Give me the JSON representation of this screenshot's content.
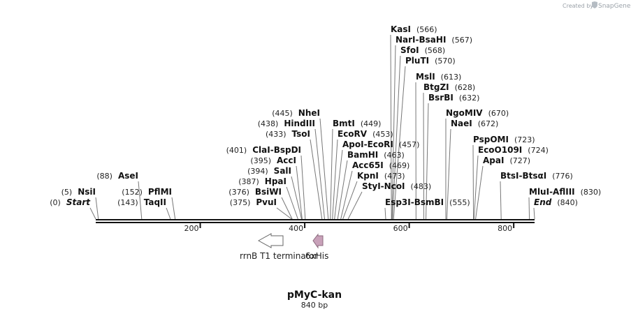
{
  "credit": {
    "prefix": "Created by",
    "brand": "SnapGene"
  },
  "plasmid": {
    "name": "pMyC-kan",
    "length_label": "840 bp",
    "length": 840
  },
  "axis": {
    "ticks": [
      200,
      400,
      600,
      800
    ]
  },
  "sites": [
    {
      "names": [
        "KasI"
      ],
      "pos": "(566)",
      "bp": 566,
      "side": "right"
    },
    {
      "names": [
        "NarI",
        "BsaHI"
      ],
      "pos": "(567)",
      "bp": 567,
      "side": "right"
    },
    {
      "names": [
        "SfoI"
      ],
      "pos": "(568)",
      "bp": 568,
      "side": "right"
    },
    {
      "names": [
        "PluTI"
      ],
      "pos": "(570)",
      "bp": 570,
      "side": "right"
    },
    {
      "names": [
        "MslI"
      ],
      "pos": "(613)",
      "bp": 613,
      "side": "right"
    },
    {
      "names": [
        "BtgZI"
      ],
      "pos": "(628)",
      "bp": 628,
      "side": "right"
    },
    {
      "names": [
        "BsrBI"
      ],
      "pos": "(632)",
      "bp": 632,
      "side": "right"
    },
    {
      "names": [
        "NgoMIV"
      ],
      "pos": "(670)",
      "bp": 670,
      "side": "right"
    },
    {
      "names": [
        "NaeI"
      ],
      "pos": "(672)",
      "bp": 672,
      "side": "right"
    },
    {
      "names": [
        "PspOMI"
      ],
      "pos": "(723)",
      "bp": 723,
      "side": "right"
    },
    {
      "names": [
        "EcoO109I"
      ],
      "pos": "(724)",
      "bp": 724,
      "side": "right"
    },
    {
      "names": [
        "ApaI"
      ],
      "pos": "(727)",
      "bp": 727,
      "side": "right"
    },
    {
      "names": [
        "BtsI",
        "BtsαI"
      ],
      "pos": "(776)",
      "bp": 776,
      "side": "right"
    },
    {
      "names": [
        "MluI",
        "AflIII"
      ],
      "pos": "(830)",
      "bp": 830,
      "side": "right"
    },
    {
      "names": [
        "End"
      ],
      "pos": "(840)",
      "bp": 840,
      "side": "right",
      "italic": true
    },
    {
      "names": [
        "BmtI"
      ],
      "pos": "(449)",
      "bp": 449,
      "side": "right"
    },
    {
      "names": [
        "EcoRV"
      ],
      "pos": "(453)",
      "bp": 453,
      "side": "right"
    },
    {
      "names": [
        "ApoI",
        "EcoRI"
      ],
      "pos": "(457)",
      "bp": 457,
      "side": "right"
    },
    {
      "names": [
        "BamHI"
      ],
      "pos": "(463)",
      "bp": 463,
      "side": "right"
    },
    {
      "names": [
        "Acc65I"
      ],
      "pos": "(469)",
      "bp": 469,
      "side": "right"
    },
    {
      "names": [
        "KpnI"
      ],
      "pos": "(473)",
      "bp": 473,
      "side": "right"
    },
    {
      "names": [
        "StyI",
        "NcoI"
      ],
      "pos": "(483)",
      "bp": 483,
      "side": "right"
    },
    {
      "names": [
        "Esp3I",
        "BsmBI"
      ],
      "pos": "(555)",
      "bp": 555,
      "side": "right"
    },
    {
      "names": [
        "NheI"
      ],
      "pos": "(445)",
      "bp": 445,
      "side": "left"
    },
    {
      "names": [
        "HindIII"
      ],
      "pos": "(438)",
      "bp": 438,
      "side": "left"
    },
    {
      "names": [
        "TsoI"
      ],
      "pos": "(433)",
      "bp": 433,
      "side": "left"
    },
    {
      "names": [
        "ClaI",
        "BspDI"
      ],
      "pos": "(401)",
      "bp": 401,
      "side": "left"
    },
    {
      "names": [
        "AccI"
      ],
      "pos": "(395)",
      "bp": 395,
      "side": "left"
    },
    {
      "names": [
        "SalI"
      ],
      "pos": "(394)",
      "bp": 394,
      "side": "left"
    },
    {
      "names": [
        "HpaI"
      ],
      "pos": "(387)",
      "bp": 387,
      "side": "left"
    },
    {
      "names": [
        "BsiWI"
      ],
      "pos": "(376)",
      "bp": 376,
      "side": "left"
    },
    {
      "names": [
        "PvuI"
      ],
      "pos": "(375)",
      "bp": 375,
      "side": "left"
    },
    {
      "names": [
        "AseI"
      ],
      "pos": "(88)",
      "bp": 88,
      "side": "left"
    },
    {
      "names": [
        "NsiI"
      ],
      "pos": "(5)",
      "bp": 5,
      "side": "left"
    },
    {
      "names": [
        "Start"
      ],
      "pos": "(0)",
      "bp": 0,
      "side": "left",
      "italic": true
    },
    {
      "names": [
        "PflMI"
      ],
      "pos": "(152)",
      "bp": 152,
      "side": "left"
    },
    {
      "names": [
        "TaqII"
      ],
      "pos": "(143)",
      "bp": 143,
      "side": "left"
    }
  ],
  "features": [
    {
      "name": "rrnB T1 terminator",
      "direction": "reverse",
      "color": "#ffffff"
    },
    {
      "name": "6xHis",
      "direction": "reverse",
      "color": "#c8a1b9"
    }
  ]
}
